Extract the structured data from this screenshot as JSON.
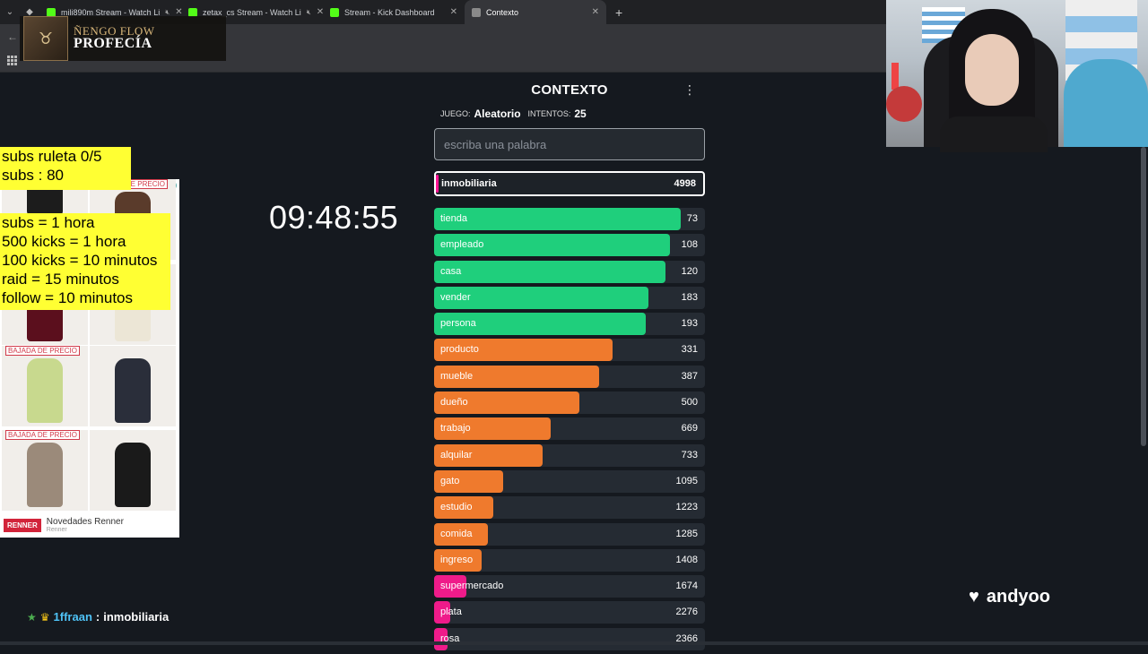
{
  "browser": {
    "tabs": [
      {
        "title": "mili890m Stream - Watch Li",
        "favicon_color": "#53fc18",
        "muted": true
      },
      {
        "title": "zetax_cs Stream - Watch Li",
        "favicon_color": "#53fc18",
        "muted": true
      },
      {
        "title": "Stream - Kick Dashboard",
        "favicon_color": "#53fc18",
        "muted": false
      },
      {
        "title": "Contexto",
        "favicon_color": "#8a8a8a",
        "muted": false,
        "active": true
      }
    ],
    "new_tab": "+"
  },
  "music": {
    "artist": "ÑENGO FLOW",
    "song": "PROFECÍA"
  },
  "overlay": {
    "subs_roulette": "subs ruleta 0/5",
    "subs_count": "subs : 80",
    "rules": [
      "subs = 1 hora",
      "500 kicks = 1 hora",
      "100 kicks = 10 minutos",
      "raid = 15 minutos",
      "follow = 10 minutos"
    ],
    "timer": "09:48:55"
  },
  "ad": {
    "badge": "BAJADA DE PRECIO",
    "brand_logo": "RENNER",
    "brand_title": "Novedades Renner",
    "brand_sub": "Renner"
  },
  "game": {
    "title": "CONTEXTO",
    "menu_icon": "⋮",
    "game_label": "JUEGO:",
    "game_value": "Aleatorio",
    "attempts_label": "INTENTOS:",
    "attempts_value": "25",
    "input_placeholder": "escriba una palabra",
    "current": {
      "word": "inmobiliaria",
      "rank": "4998"
    },
    "guesses": [
      {
        "word": "tienda",
        "rank": "73",
        "color": "#1fcf7c",
        "fill": 0.91
      },
      {
        "word": "empleado",
        "rank": "108",
        "color": "#1fcf7c",
        "fill": 0.87
      },
      {
        "word": "casa",
        "rank": "120",
        "color": "#1fcf7c",
        "fill": 0.855
      },
      {
        "word": "vender",
        "rank": "183",
        "color": "#1fcf7c",
        "fill": 0.79
      },
      {
        "word": "persona",
        "rank": "193",
        "color": "#1fcf7c",
        "fill": 0.78
      },
      {
        "word": "producto",
        "rank": "331",
        "color": "#ef7a2d",
        "fill": 0.66
      },
      {
        "word": "mueble",
        "rank": "387",
        "color": "#ef7a2d",
        "fill": 0.61
      },
      {
        "word": "dueño",
        "rank": "500",
        "color": "#ef7a2d",
        "fill": 0.535
      },
      {
        "word": "trabajo",
        "rank": "669",
        "color": "#ef7a2d",
        "fill": 0.43
      },
      {
        "word": "alquilar",
        "rank": "733",
        "color": "#ef7a2d",
        "fill": 0.4
      },
      {
        "word": "gato",
        "rank": "1095",
        "color": "#ef7a2d",
        "fill": 0.255
      },
      {
        "word": "estudio",
        "rank": "1223",
        "color": "#ef7a2d",
        "fill": 0.22
      },
      {
        "word": "comida",
        "rank": "1285",
        "color": "#ef7a2d",
        "fill": 0.2
      },
      {
        "word": "ingreso",
        "rank": "1408",
        "color": "#ef7a2d",
        "fill": 0.175
      },
      {
        "word": "supermercado",
        "rank": "1674",
        "color": "#ef1b8a",
        "fill": 0.12
      },
      {
        "word": "plata",
        "rank": "2276",
        "color": "#ef1b8a",
        "fill": 0.06
      },
      {
        "word": "rosa",
        "rank": "2366",
        "color": "#ef1b8a",
        "fill": 0.05
      }
    ]
  },
  "chat": {
    "user": "1ffraan",
    "separator": ":",
    "message": "inmobiliaria"
  },
  "follow": {
    "name": "andyoo"
  }
}
